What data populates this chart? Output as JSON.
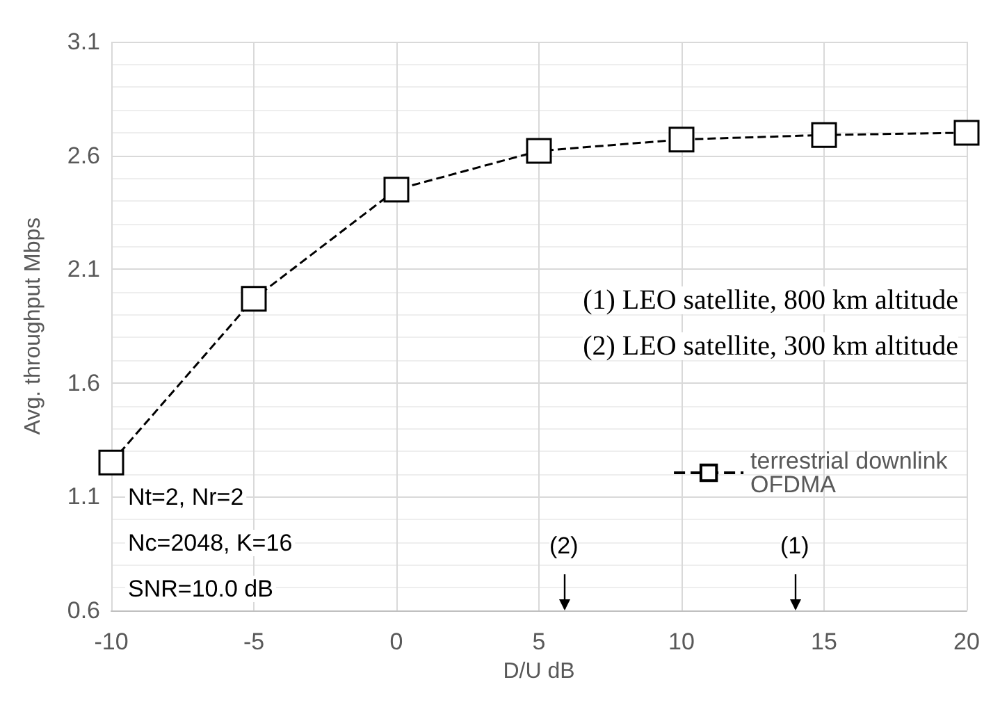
{
  "chart_data": {
    "type": "line",
    "xlabel": "D/U dB",
    "ylabel": "Avg. throughput Mbps",
    "x": [
      -10,
      -5,
      0,
      5,
      10,
      15,
      20
    ],
    "series": [
      {
        "name": "terrestrial downlink OFDMA",
        "color": "#000000",
        "values": [
          1.25,
          1.97,
          2.45,
          2.62,
          2.67,
          2.69,
          2.7
        ]
      }
    ],
    "xlim": [
      -10,
      20
    ],
    "xticks": [
      -10,
      -5,
      0,
      5,
      10,
      15,
      20
    ],
    "ylim": [
      0.6,
      3.1
    ],
    "yticks": [
      0.6,
      1.1,
      1.6,
      2.1,
      2.6,
      3.1
    ],
    "grid": true,
    "legend": "right",
    "marker": "square",
    "line_style": "dashed",
    "annotations": [
      "(1) LEO satellite, 800 km altitude",
      "(2) LEO satellite, 300 km altitude",
      "Nt=2, Nr=2",
      "Nc=2048, K=16",
      "SNR=10.0 dB",
      "(2)",
      "(1)"
    ]
  }
}
